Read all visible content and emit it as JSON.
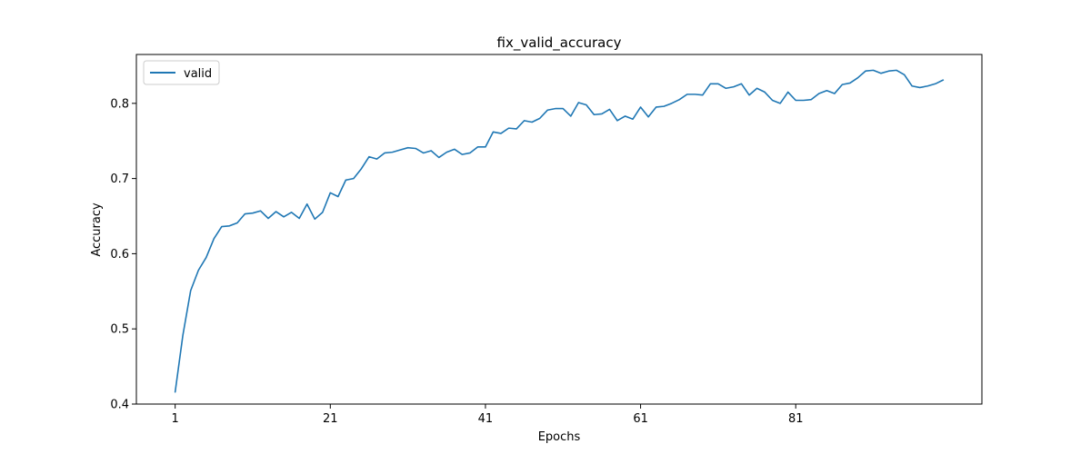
{
  "chart_data": {
    "type": "line",
    "title": "fix_valid_accuracy",
    "xlabel": "Epochs",
    "ylabel": "Accuracy",
    "xlim": [
      -4.0,
      105.0
    ],
    "ylim": [
      0.4,
      0.865
    ],
    "xticks": [
      1,
      21,
      41,
      61,
      81
    ],
    "yticks": [
      0.4,
      0.5,
      0.6,
      0.7,
      0.8
    ],
    "ytick_labels": [
      "0.4",
      "0.5",
      "0.6",
      "0.7",
      "0.8"
    ],
    "grid": false,
    "legend": {
      "position": "top-left",
      "entries": [
        "valid"
      ]
    },
    "series": [
      {
        "name": "valid",
        "color": "#1f77b4",
        "x": [
          1,
          2,
          3,
          4,
          5,
          6,
          7,
          8,
          9,
          10,
          11,
          12,
          13,
          14,
          15,
          16,
          17,
          18,
          19,
          20,
          21,
          22,
          23,
          24,
          25,
          26,
          27,
          28,
          29,
          30,
          31,
          32,
          33,
          34,
          35,
          36,
          37,
          38,
          39,
          40,
          41,
          42,
          43,
          44,
          45,
          46,
          47,
          48,
          49,
          50,
          51,
          52,
          53,
          54,
          55,
          56,
          57,
          58,
          59,
          60,
          61,
          62,
          63,
          64,
          65,
          66,
          67,
          68,
          69,
          70,
          71,
          72,
          73,
          74,
          75,
          76,
          77,
          78,
          79,
          80,
          81,
          82,
          83,
          84,
          85,
          86,
          87,
          88,
          89,
          90,
          91,
          92,
          93,
          94,
          95,
          96,
          97,
          98,
          99,
          100
        ],
        "values": [
          0.416,
          0.492,
          0.551,
          0.578,
          0.595,
          0.62,
          0.636,
          0.637,
          0.641,
          0.653,
          0.654,
          0.657,
          0.647,
          0.656,
          0.649,
          0.655,
          0.647,
          0.666,
          0.646,
          0.655,
          0.681,
          0.676,
          0.698,
          0.7,
          0.713,
          0.729,
          0.726,
          0.734,
          0.735,
          0.738,
          0.741,
          0.74,
          0.734,
          0.737,
          0.728,
          0.735,
          0.739,
          0.732,
          0.734,
          0.742,
          0.742,
          0.762,
          0.76,
          0.767,
          0.766,
          0.777,
          0.775,
          0.78,
          0.791,
          0.793,
          0.793,
          0.783,
          0.801,
          0.798,
          0.785,
          0.786,
          0.792,
          0.777,
          0.783,
          0.779,
          0.795,
          0.782,
          0.795,
          0.796,
          0.8,
          0.805,
          0.812,
          0.812,
          0.811,
          0.826,
          0.826,
          0.82,
          0.822,
          0.826,
          0.811,
          0.82,
          0.815,
          0.804,
          0.8,
          0.815,
          0.804,
          0.804,
          0.805,
          0.813,
          0.817,
          0.813,
          0.825,
          0.827,
          0.834,
          0.843,
          0.844,
          0.84,
          0.843,
          0.844,
          0.838,
          0.823,
          0.821,
          0.823,
          0.826,
          0.831
        ]
      }
    ]
  }
}
